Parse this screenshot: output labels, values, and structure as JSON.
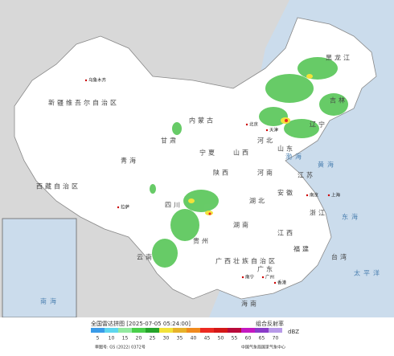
{
  "map": {
    "provinces": [
      "新疆维吾尔自治区",
      "西藏自治区",
      "青海",
      "内蒙古",
      "黑龙江",
      "吉林",
      "辽宁",
      "河北",
      "山西",
      "陕西",
      "甘肃",
      "宁夏",
      "四川",
      "云南",
      "贵州",
      "广西壮族自治区",
      "广东",
      "湖南",
      "湖北",
      "河南",
      "山东",
      "江苏",
      "安徽",
      "浙江",
      "江西",
      "福建",
      "台湾",
      "海南"
    ],
    "seas": [
      "渤海",
      "黄海",
      "东海",
      "南海",
      "太平洋"
    ],
    "cities": [
      "乌鲁木齐",
      "拉萨",
      "北京",
      "天津",
      "上海",
      "南京",
      "南宁",
      "广州",
      "香港"
    ]
  },
  "legend": {
    "title": "全国雷达拼图 [2025-07-05 05:24:00]",
    "product": "组合反射率",
    "unit": "dBZ",
    "ticks": [
      5,
      10,
      15,
      20,
      25,
      30,
      35,
      40,
      45,
      50,
      55,
      60,
      65,
      70
    ],
    "colors": [
      "#3a9be8",
      "#5ed6ee",
      "#93e9a0",
      "#49cf4a",
      "#25a42a",
      "#f2e23a",
      "#e7b22a",
      "#f08a1e",
      "#ec2a22",
      "#d41818",
      "#b80a3a",
      "#c418c0",
      "#8a3cc8",
      "#b89ae8"
    ]
  },
  "footer": {
    "approval": "审图号: GS (2022) 0372号",
    "source": "中国气象局国家气象中心"
  }
}
